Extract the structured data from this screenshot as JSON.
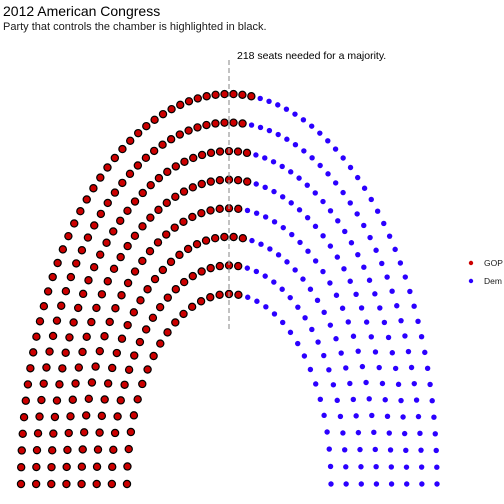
{
  "chart_data": {
    "type": "scatter",
    "subtype": "parliament-arch",
    "title": "2012 American Congress",
    "subtitle": "Party that controls the chamber is highlighted in black.",
    "annotation": "218 seats needed for a majority.",
    "total_seats": 435,
    "majority_threshold": 218,
    "rows": 8,
    "grid": false,
    "legend_position": "right",
    "controlling_party": "GOP",
    "series": [
      {
        "name": "GOP",
        "seats": 234,
        "color": "#cc0000",
        "highlighted": true
      },
      {
        "name": "Dem",
        "seats": 201,
        "color": "#2b00ff",
        "highlighted": false
      }
    ]
  }
}
